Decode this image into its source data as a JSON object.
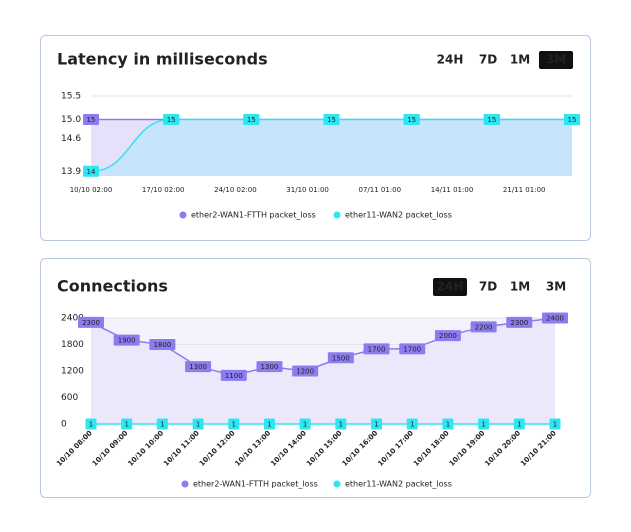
{
  "chart_data": [
    {
      "type": "line",
      "title": "Latency in milliseconds",
      "ranges": [
        "24H",
        "7D",
        "1M",
        "3M"
      ],
      "active_range": 3,
      "smooth": true,
      "categories": [
        "10/10 02:00",
        "17/10 02:00",
        "24/10 02:00",
        "31/10 01:00",
        "07/11 01:00",
        "14/11 01:00",
        "21/11 01:00"
      ],
      "ylim": [
        13.8,
        15.5
      ],
      "yticks": [
        13.9,
        14.6,
        {
          "value": 15,
          "label": "15.0"
        },
        15.5
      ],
      "grid": true,
      "series": [
        {
          "name": "ether2-WAN1-FTTH packet_loss",
          "color": "#8b7cf0",
          "fill": "#e6e1fb",
          "values": [
            15,
            15,
            15,
            15,
            15,
            15,
            15
          ]
        },
        {
          "name": "ether11-WAN2 packet_loss",
          "color": "#2ee6f2",
          "fill": "#c6e4fb",
          "values": [
            13.9,
            15,
            15,
            15,
            15,
            15,
            15
          ],
          "value_labels": [
            "14",
            "15",
            "15",
            "15",
            "15",
            "15",
            "15"
          ]
        }
      ]
    },
    {
      "type": "line",
      "title": "Connections",
      "ranges": [
        "24H",
        "7D",
        "1M",
        "3M"
      ],
      "active_range": 0,
      "smooth": false,
      "categories": [
        "10/10 08:00",
        "10/10 09:00",
        "10/10 10:00",
        "10/10 11:00",
        "10/10 12:00",
        "10/10 13:00",
        "10/10 14:00",
        "10/10 15:00",
        "10/10 16:00",
        "10/10 17:00",
        "10/10 18:00",
        "10/10 19:00",
        "10/10 20:00",
        "10/10 21:00"
      ],
      "ylim": [
        0,
        2400
      ],
      "yticks": [
        0,
        600,
        1200,
        1800,
        2400
      ],
      "grid": true,
      "series": [
        {
          "name": "ether2-WAN1-FTTH packet_loss",
          "color": "#8b7cf0",
          "fill": "#ebe8fb",
          "values": [
            2300,
            1900,
            1800,
            1300,
            1100,
            1300,
            1200,
            1500,
            1700,
            1700,
            2000,
            2200,
            2300,
            2400
          ]
        },
        {
          "name": "ether11-WAN2 packet_loss",
          "color": "#2ee6f2",
          "fill": "none",
          "values": [
            1,
            1,
            1,
            1,
            1,
            1,
            1,
            1,
            1,
            1,
            1,
            1,
            1,
            1
          ]
        }
      ]
    }
  ]
}
